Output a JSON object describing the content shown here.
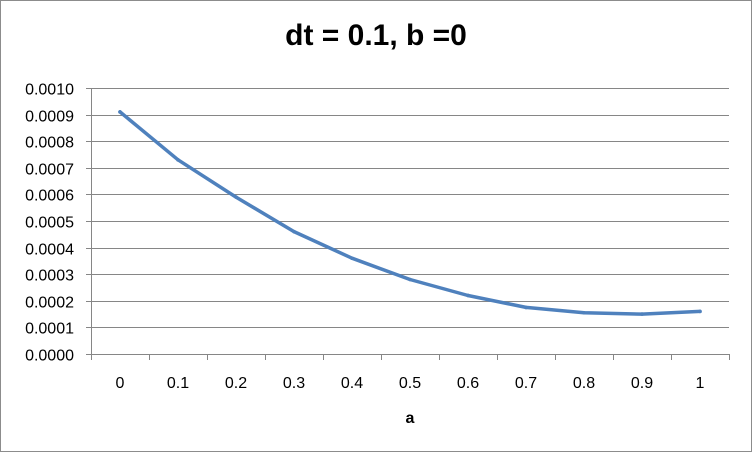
{
  "chart_data": {
    "type": "line",
    "title": "dt = 0.1, b =0",
    "xlabel": "a",
    "ylabel": "",
    "categories": [
      "0",
      "0.1",
      "0.2",
      "0.3",
      "0.4",
      "0.5",
      "0.6",
      "0.7",
      "0.8",
      "0.9",
      "1"
    ],
    "series": [
      {
        "values": [
          0.00091,
          0.00073,
          0.00059,
          0.00046,
          0.00036,
          0.00028,
          0.00022,
          0.000175,
          0.000155,
          0.00015,
          0.00016
        ],
        "color": "#4f81bd"
      }
    ],
    "ylim": [
      0,
      0.001
    ],
    "yticks": [
      "0.0000",
      "0.0001",
      "0.0002",
      "0.0003",
      "0.0004",
      "0.0005",
      "0.0006",
      "0.0007",
      "0.0008",
      "0.0009",
      "0.0010"
    ],
    "grid": true,
    "gridline_color": "#868686",
    "legend": "none"
  }
}
